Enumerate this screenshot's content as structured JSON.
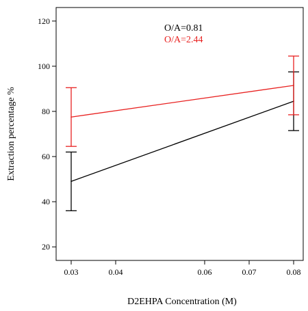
{
  "chart_data": {
    "type": "line",
    "title": "",
    "xlabel": "D2EHPA Concentration (M)",
    "ylabel": "Extraction percentage %",
    "xlim": [
      0.03,
      0.08
    ],
    "ylim": [
      14,
      126
    ],
    "x_ticks": [
      0.03,
      0.04,
      0.06,
      0.07,
      0.08
    ],
    "x_tick_labels": [
      "0.03",
      "0.04",
      "0.06",
      "0.07",
      "0.08"
    ],
    "y_ticks": [
      20,
      40,
      60,
      80,
      100,
      120
    ],
    "y_tick_labels": [
      "20",
      "40",
      "60",
      "80",
      "100",
      "120"
    ],
    "legend_position": "top-center",
    "grid": false,
    "series": [
      {
        "name": "O/A=0.81",
        "color": "#000000",
        "x": [
          0.03,
          0.08
        ],
        "y": [
          49,
          84.5
        ],
        "error_low": [
          36,
          71.5
        ],
        "error_high": [
          62,
          97.5
        ]
      },
      {
        "name": "O/A=2.44",
        "color": "#e8201f",
        "x": [
          0.03,
          0.08
        ],
        "y": [
          77.5,
          91.5
        ],
        "error_low": [
          64.5,
          78.5
        ],
        "error_high": [
          90.5,
          104.5
        ]
      }
    ]
  }
}
